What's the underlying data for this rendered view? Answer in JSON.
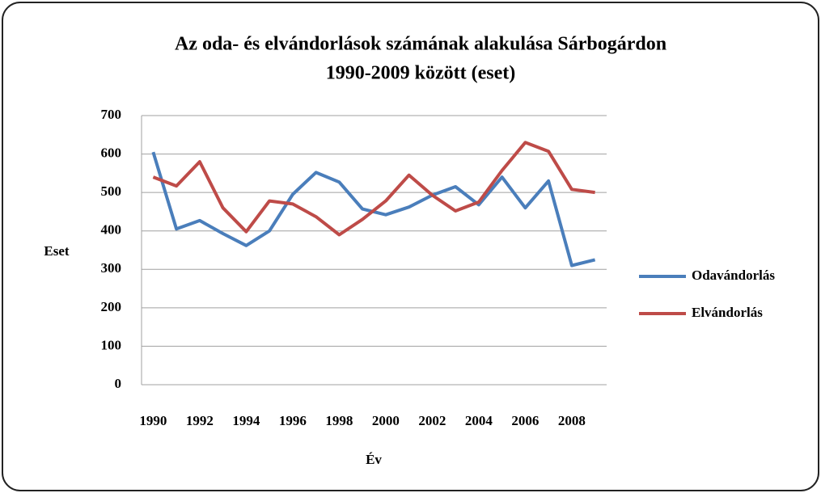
{
  "chart_data": {
    "type": "line",
    "title": [
      "Az oda- és elvándorlások számának alakulása Sárbogárdon",
      "1990-2009 között (eset)"
    ],
    "x_label": "Év",
    "y_label": "Eset",
    "categories": [
      "1990",
      null,
      "1992",
      null,
      "1994",
      null,
      "1996",
      null,
      "1998",
      null,
      "2000",
      null,
      "2002",
      null,
      "2004",
      null,
      "2006",
      null,
      "2008",
      null
    ],
    "series": [
      {
        "name": "Odavándorlás",
        "color": "#4a7ebb",
        "values": [
          605,
          405,
          427,
          393,
          362,
          400,
          495,
          552,
          527,
          457,
          442,
          462,
          493,
          515,
          468,
          540,
          460,
          530,
          310,
          325
        ]
      },
      {
        "name": "Elvándorlás",
        "color": "#be4b48",
        "values": [
          540,
          517,
          580,
          460,
          398,
          478,
          470,
          437,
          390,
          430,
          478,
          545,
          493,
          452,
          475,
          557,
          630,
          607,
          508,
          500
        ]
      }
    ],
    "ylim": [
      0,
      700
    ],
    "yticks": [
      0,
      100,
      200,
      300,
      400,
      500,
      600,
      700
    ],
    "grid": true,
    "legend": "right"
  }
}
